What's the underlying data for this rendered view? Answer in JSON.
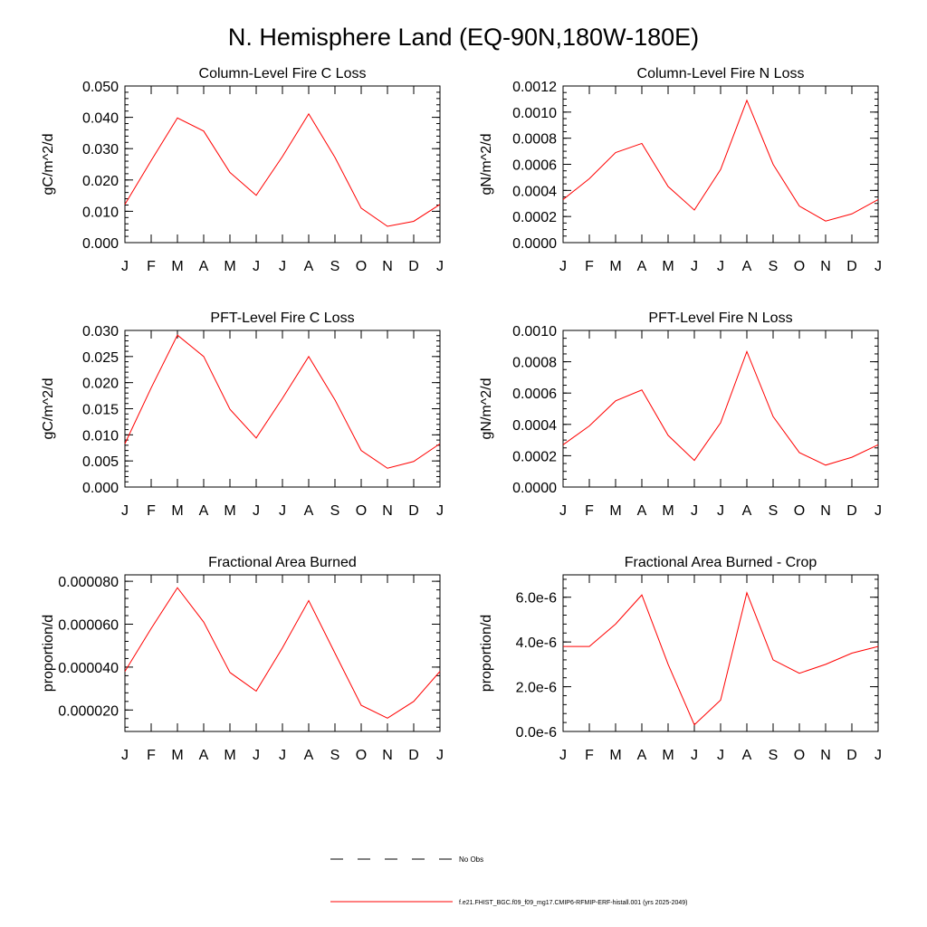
{
  "figure": {
    "title": "N. Hemisphere Land (EQ-90N,180W-180E)",
    "legend": [
      {
        "label": "No Obs",
        "color": "#000000",
        "style": "dashed"
      },
      {
        "label": "f.e21.FHIST_BGC.f09_f09_mg17.CMIP6-RFMIP-ERF-histall.001 (yrs 2025-2049)",
        "color": "#ff0000",
        "style": "solid"
      }
    ]
  },
  "chart_data": [
    {
      "type": "line",
      "title": "Column-Level Fire C Loss",
      "xlabel": "",
      "ylabel": "gC/m^2/d",
      "categories": [
        "J",
        "F",
        "M",
        "A",
        "M",
        "J",
        "J",
        "A",
        "S",
        "O",
        "N",
        "D",
        "J"
      ],
      "ylim": [
        0,
        0.05
      ],
      "yticks": [
        0,
        0.01,
        0.02,
        0.03,
        0.04,
        0.05
      ],
      "ytick_labels": [
        "0.000",
        "0.010",
        "0.020",
        "0.030",
        "0.040",
        "0.050"
      ],
      "yminor": 0.002,
      "series": [
        {
          "name": "f.e21.FHIST_BGC.f09_f09_mg17.CMIP6-RFMIP-ERF-histall.001 (yrs 2025-2049)",
          "color": "#ff0000",
          "values": [
            0.0122,
            0.0262,
            0.0398,
            0.0356,
            0.0224,
            0.0151,
            0.0275,
            0.0411,
            0.0272,
            0.011,
            0.0052,
            0.0068,
            0.0122
          ]
        }
      ]
    },
    {
      "type": "line",
      "title": "Column-Level Fire N Loss",
      "xlabel": "",
      "ylabel": "gN/m^2/d",
      "categories": [
        "J",
        "F",
        "M",
        "A",
        "M",
        "J",
        "J",
        "A",
        "S",
        "O",
        "N",
        "D",
        "J"
      ],
      "ylim": [
        0,
        0.0012
      ],
      "yticks": [
        0,
        0.0002,
        0.0004,
        0.0006,
        0.0008,
        0.001,
        0.0012
      ],
      "ytick_labels": [
        "0.0000",
        "0.0002",
        "0.0004",
        "0.0006",
        "0.0008",
        "0.0010",
        "0.0012"
      ],
      "yminor": 5e-05,
      "series": [
        {
          "name": "f.e21.FHIST_BGC.f09_f09_mg17.CMIP6-RFMIP-ERF-histall.001 (yrs 2025-2049)",
          "color": "#ff0000",
          "values": [
            0.00033,
            0.00049,
            0.00069,
            0.00076,
            0.00043,
            0.00025,
            0.00056,
            0.00109,
            0.0006,
            0.00028,
            0.000165,
            0.00022,
            0.00033
          ]
        }
      ]
    },
    {
      "type": "line",
      "title": "PFT-Level Fire C Loss",
      "xlabel": "",
      "ylabel": "gC/m^2/d",
      "categories": [
        "J",
        "F",
        "M",
        "A",
        "M",
        "J",
        "J",
        "A",
        "S",
        "O",
        "N",
        "D",
        "J"
      ],
      "ylim": [
        0,
        0.03
      ],
      "yticks": [
        0,
        0.005,
        0.01,
        0.015,
        0.02,
        0.025,
        0.03
      ],
      "ytick_labels": [
        "0.000",
        "0.005",
        "0.010",
        "0.015",
        "0.020",
        "0.025",
        "0.030"
      ],
      "yminor": 0.001,
      "series": [
        {
          "name": "f.e21.FHIST_BGC.f09_f09_mg17.CMIP6-RFMIP-ERF-histall.001 (yrs 2025-2049)",
          "color": "#ff0000",
          "values": [
            0.0083,
            0.019,
            0.0291,
            0.025,
            0.0149,
            0.0094,
            0.017,
            0.025,
            0.0167,
            0.007,
            0.0036,
            0.0049,
            0.0083
          ]
        }
      ]
    },
    {
      "type": "line",
      "title": "PFT-Level Fire N Loss",
      "xlabel": "",
      "ylabel": "gN/m^2/d",
      "categories": [
        "J",
        "F",
        "M",
        "A",
        "M",
        "J",
        "J",
        "A",
        "S",
        "O",
        "N",
        "D",
        "J"
      ],
      "ylim": [
        0,
        0.001
      ],
      "yticks": [
        0,
        0.0002,
        0.0004,
        0.0006,
        0.0008,
        0.001
      ],
      "ytick_labels": [
        "0.0000",
        "0.0002",
        "0.0004",
        "0.0006",
        "0.0008",
        "0.0010"
      ],
      "yminor": 5e-05,
      "series": [
        {
          "name": "f.e21.FHIST_BGC.f09_f09_mg17.CMIP6-RFMIP-ERF-histall.001 (yrs 2025-2049)",
          "color": "#ff0000",
          "values": [
            0.00027,
            0.00039,
            0.00055,
            0.00062,
            0.00033,
            0.00017,
            0.00041,
            0.000865,
            0.00045,
            0.00022,
            0.00014,
            0.00019,
            0.00027
          ]
        }
      ]
    },
    {
      "type": "line",
      "title": "Fractional Area Burned",
      "xlabel": "",
      "ylabel": "proportion/d",
      "categories": [
        "J",
        "F",
        "M",
        "A",
        "M",
        "J",
        "J",
        "A",
        "S",
        "O",
        "N",
        "D",
        "J"
      ],
      "ylim": [
        1e-05,
        8.3e-05
      ],
      "yticks": [
        2e-05,
        4e-05,
        6e-05,
        8e-05
      ],
      "ytick_labels": [
        "0.000020",
        "0.000040",
        "0.000060",
        "0.000080"
      ],
      "yminor": 4e-06,
      "series": [
        {
          "name": "f.e21.FHIST_BGC.f09_f09_mg17.CMIP6-RFMIP-ERF-histall.001 (yrs 2025-2049)",
          "color": "#ff0000",
          "values": [
            3.8e-05,
            5.8e-05,
            7.7e-05,
            6.1e-05,
            3.75e-05,
            2.88e-05,
            4.9e-05,
            7.1e-05,
            4.65e-05,
            2.22e-05,
            1.62e-05,
            2.4e-05,
            3.8e-05
          ]
        }
      ]
    },
    {
      "type": "line",
      "title": "Fractional Area Burned - Crop",
      "xlabel": "",
      "ylabel": "proportion/d",
      "categories": [
        "J",
        "F",
        "M",
        "A",
        "M",
        "J",
        "J",
        "A",
        "S",
        "O",
        "N",
        "D",
        "J"
      ],
      "ylim": [
        0,
        7e-06
      ],
      "yticks": [
        0,
        2e-06,
        4e-06,
        6e-06
      ],
      "ytick_labels": [
        "0.0e-6",
        "2.0e-6",
        "4.0e-6",
        "6.0e-6"
      ],
      "yminor": 4e-07,
      "series": [
        {
          "name": "f.e21.FHIST_BGC.f09_f09_mg17.CMIP6-RFMIP-ERF-histall.001 (yrs 2025-2049)",
          "color": "#ff0000",
          "values": [
            3.8e-06,
            3.8e-06,
            4.8e-06,
            6.1e-06,
            3e-06,
            3e-07,
            1.4e-06,
            6.2e-06,
            3.2e-06,
            2.6e-06,
            3e-06,
            3.5e-06,
            3.8e-06
          ]
        }
      ]
    }
  ]
}
